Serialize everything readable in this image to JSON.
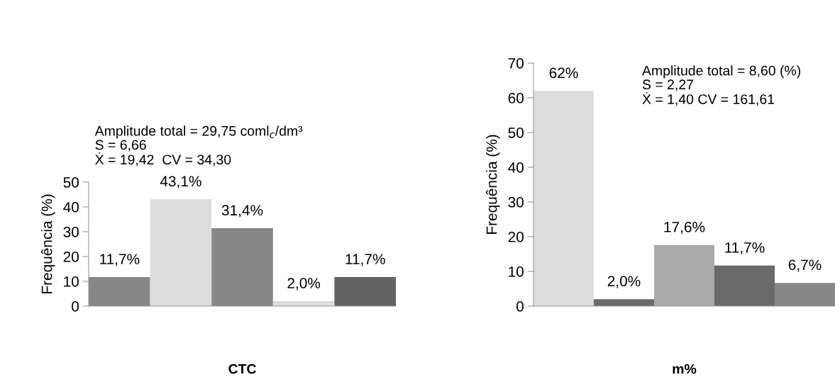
{
  "chart_data": [
    {
      "type": "bar",
      "xlabel": "CTC",
      "ylabel": "Frequência (%)",
      "categories": [
        null,
        null,
        null,
        null,
        null
      ],
      "values": [
        11.7,
        43.1,
        31.4,
        2.0,
        11.7
      ],
      "colors": [
        "#878787",
        "#dcdcdc",
        "#878787",
        "#dcdcdc",
        "#626262"
      ],
      "value_labels": [
        "11,7%",
        "43,1%",
        "31,4%",
        "2,0%",
        "11,7%"
      ],
      "ylim": [
        0,
        50
      ],
      "yticks": [
        0,
        10,
        20,
        30,
        40,
        50
      ],
      "grid": false,
      "legend": false,
      "annotations": [
        "Amplitude total = 29,75 coml$_{c}$/dm³\nS = 6,66\nẊ = 19,42  CV = 34,30"
      ]
    },
    {
      "type": "bar",
      "xlabel": "m%",
      "ylabel": "Frequência (%)",
      "categories": [
        null,
        null,
        null,
        null,
        null
      ],
      "values": [
        62,
        2.0,
        17.6,
        11.7,
        6.7
      ],
      "colors": [
        "#dcdcdc",
        "#6a6a6a",
        "#aaaaaa",
        "#6a6a6a",
        "#878787"
      ],
      "value_labels": [
        "62%",
        "2,0%",
        "17,6%",
        "11,7%",
        "6,7%"
      ],
      "ylim": [
        0,
        70
      ],
      "yticks": [
        0,
        10,
        20,
        30,
        40,
        50,
        60,
        70
      ],
      "grid": false,
      "legend": false,
      "annotations": [
        "Amplitude total = 8,60 (%)\nS = 2,27\nẊ = 1,40 CV = 161,61"
      ]
    }
  ]
}
